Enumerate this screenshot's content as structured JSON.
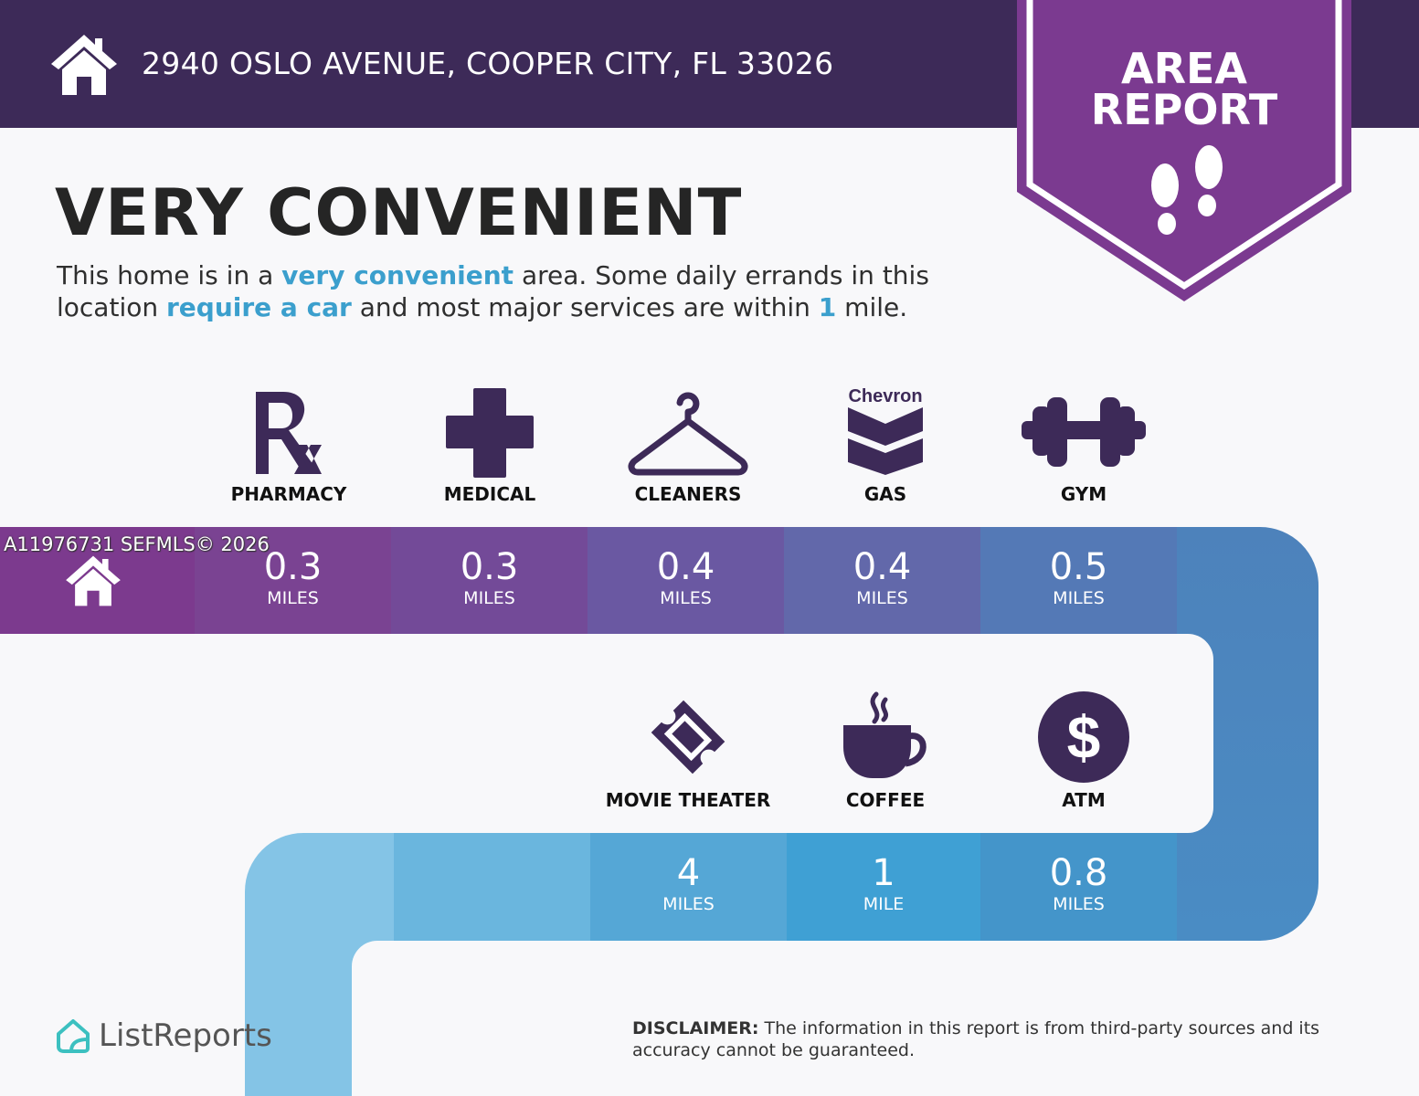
{
  "header": {
    "address": "2940 OSLO AVENUE, COOPER CITY, FL 33026",
    "icon": "house-icon"
  },
  "badge": {
    "line1": "AREA",
    "line2": "REPORT",
    "icon": "footprints-icon",
    "color": "#7b3a90"
  },
  "title": "VERY CONVENIENT",
  "description": {
    "p1": "This home is in a ",
    "h1": "very convenient",
    "p2": " area. Some daily errands in this location ",
    "h2": "require a car",
    "p3": " and most major services are within ",
    "h3": "1",
    "p4": " mile."
  },
  "watermark": "A11976731  SEFMLS© 2026",
  "amenities_top": [
    {
      "label": "PHARMACY",
      "icon": "rx-icon",
      "distance": "0.3",
      "unit": "MILES"
    },
    {
      "label": "MEDICAL",
      "icon": "medical-cross-icon",
      "distance": "0.3",
      "unit": "MILES"
    },
    {
      "label": "CLEANERS",
      "icon": "hanger-icon",
      "distance": "0.4",
      "unit": "MILES"
    },
    {
      "label": "GAS",
      "icon": "chevron-gas-icon",
      "brand": "Chevron",
      "distance": "0.4",
      "unit": "MILES"
    },
    {
      "label": "GYM",
      "icon": "dumbbell-icon",
      "distance": "0.5",
      "unit": "MILES"
    }
  ],
  "amenities_bottom": [
    {
      "label": "MOVIE THEATER",
      "icon": "ticket-icon",
      "distance": "4",
      "unit": "MILES"
    },
    {
      "label": "COFFEE",
      "icon": "coffee-cup-icon",
      "distance": "1",
      "unit": "MILE"
    },
    {
      "label": "ATM",
      "icon": "dollar-icon",
      "distance": "0.8",
      "unit": "MILES"
    }
  ],
  "footer": {
    "logo": "ListReports",
    "disclaimer_label": "DISCLAIMER:",
    "disclaimer_text": " The information in this report is from third-party sources and its accuracy cannot be guaranteed."
  }
}
